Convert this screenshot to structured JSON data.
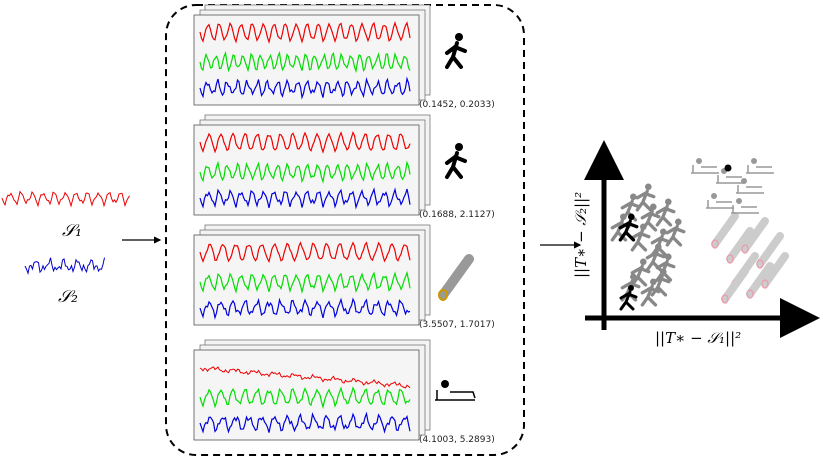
{
  "signals": [
    {
      "label": "𝒮₁"
    },
    {
      "label": "𝒮₂"
    }
  ],
  "panels": [
    {
      "coords": "(0.1452, 0.2033)"
    },
    {
      "coords": "(0.1688, 2.1127)"
    },
    {
      "coords": "(3.5507, 1.7017)"
    },
    {
      "coords": "(4.1003, 5.2893)"
    }
  ],
  "plot": {
    "x_axis_label": "||T∗ − 𝒮₁||²",
    "y_axis_label": "||T∗ − 𝒮₂||²"
  }
}
